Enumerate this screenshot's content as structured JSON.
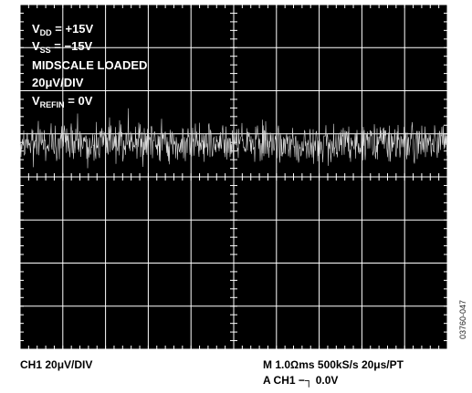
{
  "chart_data": {
    "type": "line",
    "title": "",
    "xlabel": "",
    "ylabel": "",
    "grid": true,
    "divisions": {
      "x": 10,
      "y": 8
    },
    "annotations": {
      "vdd": {
        "main": "V",
        "sub": "DD",
        "rest": " = +15V"
      },
      "vss": {
        "main": "V",
        "sub": "SS",
        "rest": " = −15V"
      },
      "midscale": "MIDSCALE LOADED",
      "vdiv": "20μV/DIV",
      "vrefin": {
        "main": "V",
        "sub": "REFIN",
        "rest": " = 0V"
      }
    },
    "series": [
      {
        "noise_center_div": 3.2,
        "noise_peak_to_peak_div": 1.3,
        "color": "#d8d8d8"
      }
    ]
  },
  "footer": {
    "ch1_scale": "CH1 20μV/DIV",
    "timebase": "M 1.0Ωms 500kS/s   20μs/PT",
    "trigger": "A CH1 −┐ 0.0V"
  },
  "figure_id": "03760-047",
  "colors": {
    "screen_bg": "#000000",
    "grid": "#ffffff",
    "trace": "#d8d8d8"
  }
}
